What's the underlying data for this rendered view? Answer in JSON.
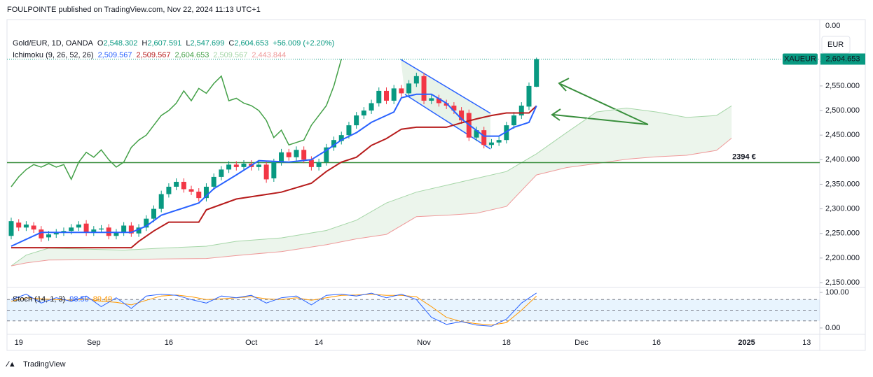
{
  "header": {
    "publisher": "FOULPOINTE published on TradingView.com, Nov 22, 2024 11:13 UTC+1",
    "footer": "TradingView"
  },
  "chart_data": {
    "type": "candlestick",
    "symbol": "Gold/EUR, 1D, OANDA",
    "ohlc_labels": [
      {
        "key": "O",
        "value": "2,548.302"
      },
      {
        "key": "H",
        "value": "2,607.591"
      },
      {
        "key": "L",
        "value": "2,547.699"
      },
      {
        "key": "C",
        "value": "2,604.653"
      }
    ],
    "change_label": "+56.009 (+2.20%)",
    "currency": "EUR",
    "top_tick_label": "0.00",
    "price_tag": {
      "symbol": "XAUEUR",
      "value": "2,604.653"
    },
    "up_color": "#089981",
    "down_color": "#f23645",
    "xlim": [
      -0.56,
      107.75
    ],
    "xticks": [
      {
        "value": 1,
        "label": "19"
      },
      {
        "value": 11,
        "label": "Sep"
      },
      {
        "value": 21,
        "label": "16"
      },
      {
        "value": 32,
        "label": "Oct"
      },
      {
        "value": 41,
        "label": "14"
      },
      {
        "value": 55,
        "label": "Nov"
      },
      {
        "value": 66,
        "label": "18"
      },
      {
        "value": 76,
        "label": "Dec"
      },
      {
        "value": 86,
        "label": "16"
      },
      {
        "value": 98,
        "label": "2025"
      },
      {
        "value": 106,
        "label": "13"
      }
    ],
    "ylim": [
      2141.5,
      2685
    ],
    "yticks": [
      {
        "value": 2150,
        "label": "2,150.000"
      },
      {
        "value": 2200,
        "label": "2,200.000"
      },
      {
        "value": 2250,
        "label": "2,250.000"
      },
      {
        "value": 2300,
        "label": "2,300.000"
      },
      {
        "value": 2350,
        "label": "2,350.000"
      },
      {
        "value": 2400,
        "label": "2,400.000"
      },
      {
        "value": 2450,
        "label": "2,450.000"
      },
      {
        "value": 2500,
        "label": "2,500.000"
      },
      {
        "value": 2550,
        "label": "2,550.000"
      },
      {
        "value": 2600,
        "label": "2,600.000"
      }
    ],
    "grid": false,
    "x": [
      0,
      1,
      2,
      3,
      4,
      5,
      6,
      7,
      8,
      9,
      10,
      11,
      12,
      13,
      14,
      15,
      16,
      17,
      18,
      19,
      20,
      21,
      22,
      23,
      24,
      25,
      26,
      27,
      28,
      29,
      30,
      31,
      32,
      33,
      34,
      35,
      36,
      37,
      38,
      39,
      40,
      41,
      42,
      43,
      44,
      45,
      46,
      47,
      48,
      49,
      50,
      51,
      52,
      53,
      54,
      55,
      56,
      57,
      58,
      59,
      60,
      61,
      62,
      63,
      64,
      65,
      66,
      67,
      68,
      69,
      70
    ],
    "open": [
      2245,
      2272,
      2262,
      2266,
      2258,
      2242,
      2248,
      2252,
      2255,
      2262,
      2270,
      2252,
      2258,
      2262,
      2245,
      2252,
      2266,
      2250,
      2262,
      2280,
      2300,
      2330,
      2345,
      2355,
      2340,
      2335,
      2322,
      2345,
      2365,
      2380,
      2390,
      2385,
      2392,
      2385,
      2390,
      2362,
      2395,
      2415,
      2405,
      2420,
      2400,
      2385,
      2395,
      2425,
      2438,
      2450,
      2470,
      2490,
      2500,
      2515,
      2540,
      2520,
      2545,
      2535,
      2555,
      2570,
      2520,
      2525,
      2515,
      2510,
      2500,
      2495,
      2445,
      2460,
      2430,
      2435,
      2440,
      2470,
      2490,
      2508,
      2548.302
    ],
    "high": [
      2282,
      2279,
      2275,
      2273,
      2265,
      2255,
      2259,
      2262,
      2269,
      2275,
      2277,
      2265,
      2267,
      2269,
      2259,
      2273,
      2273,
      2269,
      2287,
      2307,
      2337,
      2352,
      2362,
      2362,
      2347,
      2342,
      2352,
      2372,
      2387,
      2397,
      2397,
      2399,
      2399,
      2397,
      2397,
      2402,
      2422,
      2422,
      2427,
      2427,
      2407,
      2402,
      2432,
      2447,
      2457,
      2477,
      2497,
      2507,
      2522,
      2547,
      2547,
      2552,
      2552,
      2562,
      2577,
      2577,
      2532,
      2532,
      2522,
      2517,
      2507,
      2502,
      2467,
      2467,
      2442,
      2447,
      2477,
      2497,
      2517,
      2557,
      2607.591
    ],
    "low": [
      2238,
      2255,
      2255,
      2251,
      2233,
      2235,
      2241,
      2245,
      2248,
      2255,
      2245,
      2245,
      2251,
      2238,
      2238,
      2245,
      2243,
      2243,
      2255,
      2273,
      2293,
      2323,
      2338,
      2333,
      2328,
      2315,
      2315,
      2338,
      2358,
      2373,
      2378,
      2378,
      2378,
      2378,
      2353,
      2355,
      2388,
      2398,
      2398,
      2393,
      2378,
      2378,
      2388,
      2418,
      2431,
      2443,
      2463,
      2483,
      2493,
      2508,
      2513,
      2513,
      2528,
      2528,
      2548,
      2513,
      2513,
      2508,
      2503,
      2493,
      2473,
      2438,
      2438,
      2423,
      2423,
      2428,
      2433,
      2463,
      2483,
      2501,
      2547.699
    ],
    "close": [
      2275,
      2262,
      2268,
      2258,
      2240,
      2248,
      2252,
      2255,
      2262,
      2268,
      2252,
      2258,
      2260,
      2245,
      2252,
      2266,
      2250,
      2262,
      2280,
      2300,
      2330,
      2345,
      2355,
      2340,
      2335,
      2322,
      2345,
      2365,
      2380,
      2390,
      2385,
      2392,
      2385,
      2390,
      2360,
      2395,
      2415,
      2405,
      2420,
      2400,
      2385,
      2395,
      2425,
      2440,
      2450,
      2470,
      2490,
      2500,
      2515,
      2540,
      2520,
      2545,
      2535,
      2555,
      2570,
      2520,
      2525,
      2515,
      2510,
      2500,
      2480,
      2445,
      2460,
      2430,
      2435,
      2440,
      2470,
      2490,
      2510,
      2550,
      2604.653
    ],
    "ichimoku": {
      "name": "Ichimoku (9, 26, 52, 26)",
      "tenkan": {
        "color": "#2962ff",
        "label": "2,509.567",
        "x": [
          0,
          4,
          8,
          12,
          16,
          18,
          20,
          25,
          27,
          30,
          33,
          37,
          40,
          42,
          44,
          46,
          48,
          51,
          52,
          54,
          56,
          58,
          60,
          63,
          65,
          67,
          69,
          70
        ],
        "values": [
          2224,
          2252,
          2252,
          2252,
          2252,
          2265,
          2287,
          2312,
          2341,
          2369,
          2398,
          2395,
          2400,
          2419,
          2440,
          2455,
          2476,
          2497,
          2526,
          2533,
          2533,
          2515,
          2483,
          2448,
          2448,
          2466,
          2476,
          2509.567
        ]
      },
      "kijun": {
        "color": "#b71c1c",
        "label": "2,509.567",
        "x": [
          0,
          16,
          17,
          19,
          21,
          25,
          26,
          30,
          33,
          36,
          40,
          42,
          44,
          46,
          48,
          50,
          52,
          54,
          58,
          60,
          62,
          64,
          66,
          69,
          70
        ],
        "values": [
          2221,
          2221,
          2234,
          2255,
          2273,
          2273,
          2298,
          2320,
          2327,
          2334,
          2352,
          2376,
          2395,
          2405,
          2429,
          2443,
          2462,
          2466,
          2466,
          2475,
          2483,
          2490,
          2495,
          2495,
          2509.567
        ]
      },
      "chikou": {
        "color": "#43a047",
        "label": "2,604.653",
        "x": [
          0,
          1,
          2,
          3,
          4,
          5,
          6,
          7,
          8,
          9,
          10,
          11,
          12,
          13,
          14,
          15,
          16,
          17,
          18,
          19,
          20,
          21,
          22,
          23,
          24,
          25,
          26,
          27,
          28,
          29,
          30,
          31,
          32,
          33,
          34,
          35,
          36,
          37,
          38,
          39,
          40,
          41,
          42,
          43,
          44
        ],
        "values": [
          2345,
          2365,
          2380,
          2390,
          2385,
          2392,
          2385,
          2390,
          2360,
          2395,
          2415,
          2405,
          2420,
          2400,
          2385,
          2395,
          2425,
          2440,
          2450,
          2470,
          2490,
          2500,
          2515,
          2540,
          2520,
          2545,
          2535,
          2555,
          2570,
          2520,
          2525,
          2515,
          2510,
          2500,
          2480,
          2445,
          2460,
          2430,
          2435,
          2440,
          2470,
          2490,
          2510,
          2550,
          2604.653
        ]
      },
      "cloud_x": [
        0,
        2,
        5,
        15,
        20,
        26,
        30,
        36,
        42,
        46,
        50,
        54,
        58,
        62,
        66,
        70,
        74,
        78,
        82,
        86,
        90,
        94,
        96
      ],
      "span_a": {
        "color": "#a5d6a7",
        "label": "2,509.567",
        "values": [
          2184,
          2206,
          2220,
          2216,
          2220,
          2224,
          2234,
          2241,
          2256,
          2277,
          2312,
          2334,
          2348,
          2362,
          2376,
          2412,
          2455,
          2497,
          2505,
          2497,
          2486,
          2490,
          2509.567
        ]
      },
      "span_b": {
        "color": "#ef9a9a",
        "label": "2,443.844",
        "values": [
          2184,
          2190,
          2196,
          2197,
          2198,
          2199,
          2205,
          2213,
          2227,
          2239,
          2248,
          2284,
          2287,
          2291,
          2305,
          2369,
          2384,
          2392,
          2401,
          2406,
          2409,
          2419,
          2443.844
        ]
      },
      "cloud_color": "#43a047"
    },
    "annotations": [
      {
        "value": 2394,
        "label": "2394 €",
        "color": "#388e3c"
      }
    ],
    "stoch": {
      "name": "Stoch (14, 1, 3)",
      "ylim": [
        -12,
        112
      ],
      "yticks": [
        {
          "value": 0,
          "label": "0.00"
        },
        {
          "value": 100,
          "label": "100.00"
        }
      ],
      "levels": [
        80,
        50,
        20
      ],
      "x": [
        0,
        2,
        4,
        6,
        8,
        10,
        12,
        14,
        16,
        18,
        20,
        22,
        24,
        26,
        28,
        30,
        32,
        34,
        36,
        38,
        40,
        42,
        44,
        46,
        48,
        50,
        52,
        54,
        56,
        58,
        60,
        62,
        64,
        66,
        68,
        70
      ],
      "k": {
        "color": "#2962ff",
        "label": "98.50",
        "values": [
          80,
          95,
          70,
          85,
          75,
          90,
          60,
          85,
          55,
          90,
          95,
          92,
          80,
          70,
          90,
          85,
          92,
          70,
          85,
          90,
          65,
          92,
          95,
          90,
          98,
          85,
          95,
          80,
          30,
          10,
          18,
          8,
          5,
          25,
          70,
          98.5
        ]
      },
      "d": {
        "color": "#ff9800",
        "label": "89.49",
        "values": [
          75,
          85,
          82,
          80,
          78,
          82,
          75,
          72,
          65,
          78,
          90,
          93,
          88,
          80,
          82,
          85,
          88,
          82,
          80,
          85,
          78,
          85,
          92,
          93,
          95,
          92,
          92,
          88,
          60,
          30,
          18,
          12,
          8,
          15,
          50,
          89.49
        ]
      }
    }
  }
}
